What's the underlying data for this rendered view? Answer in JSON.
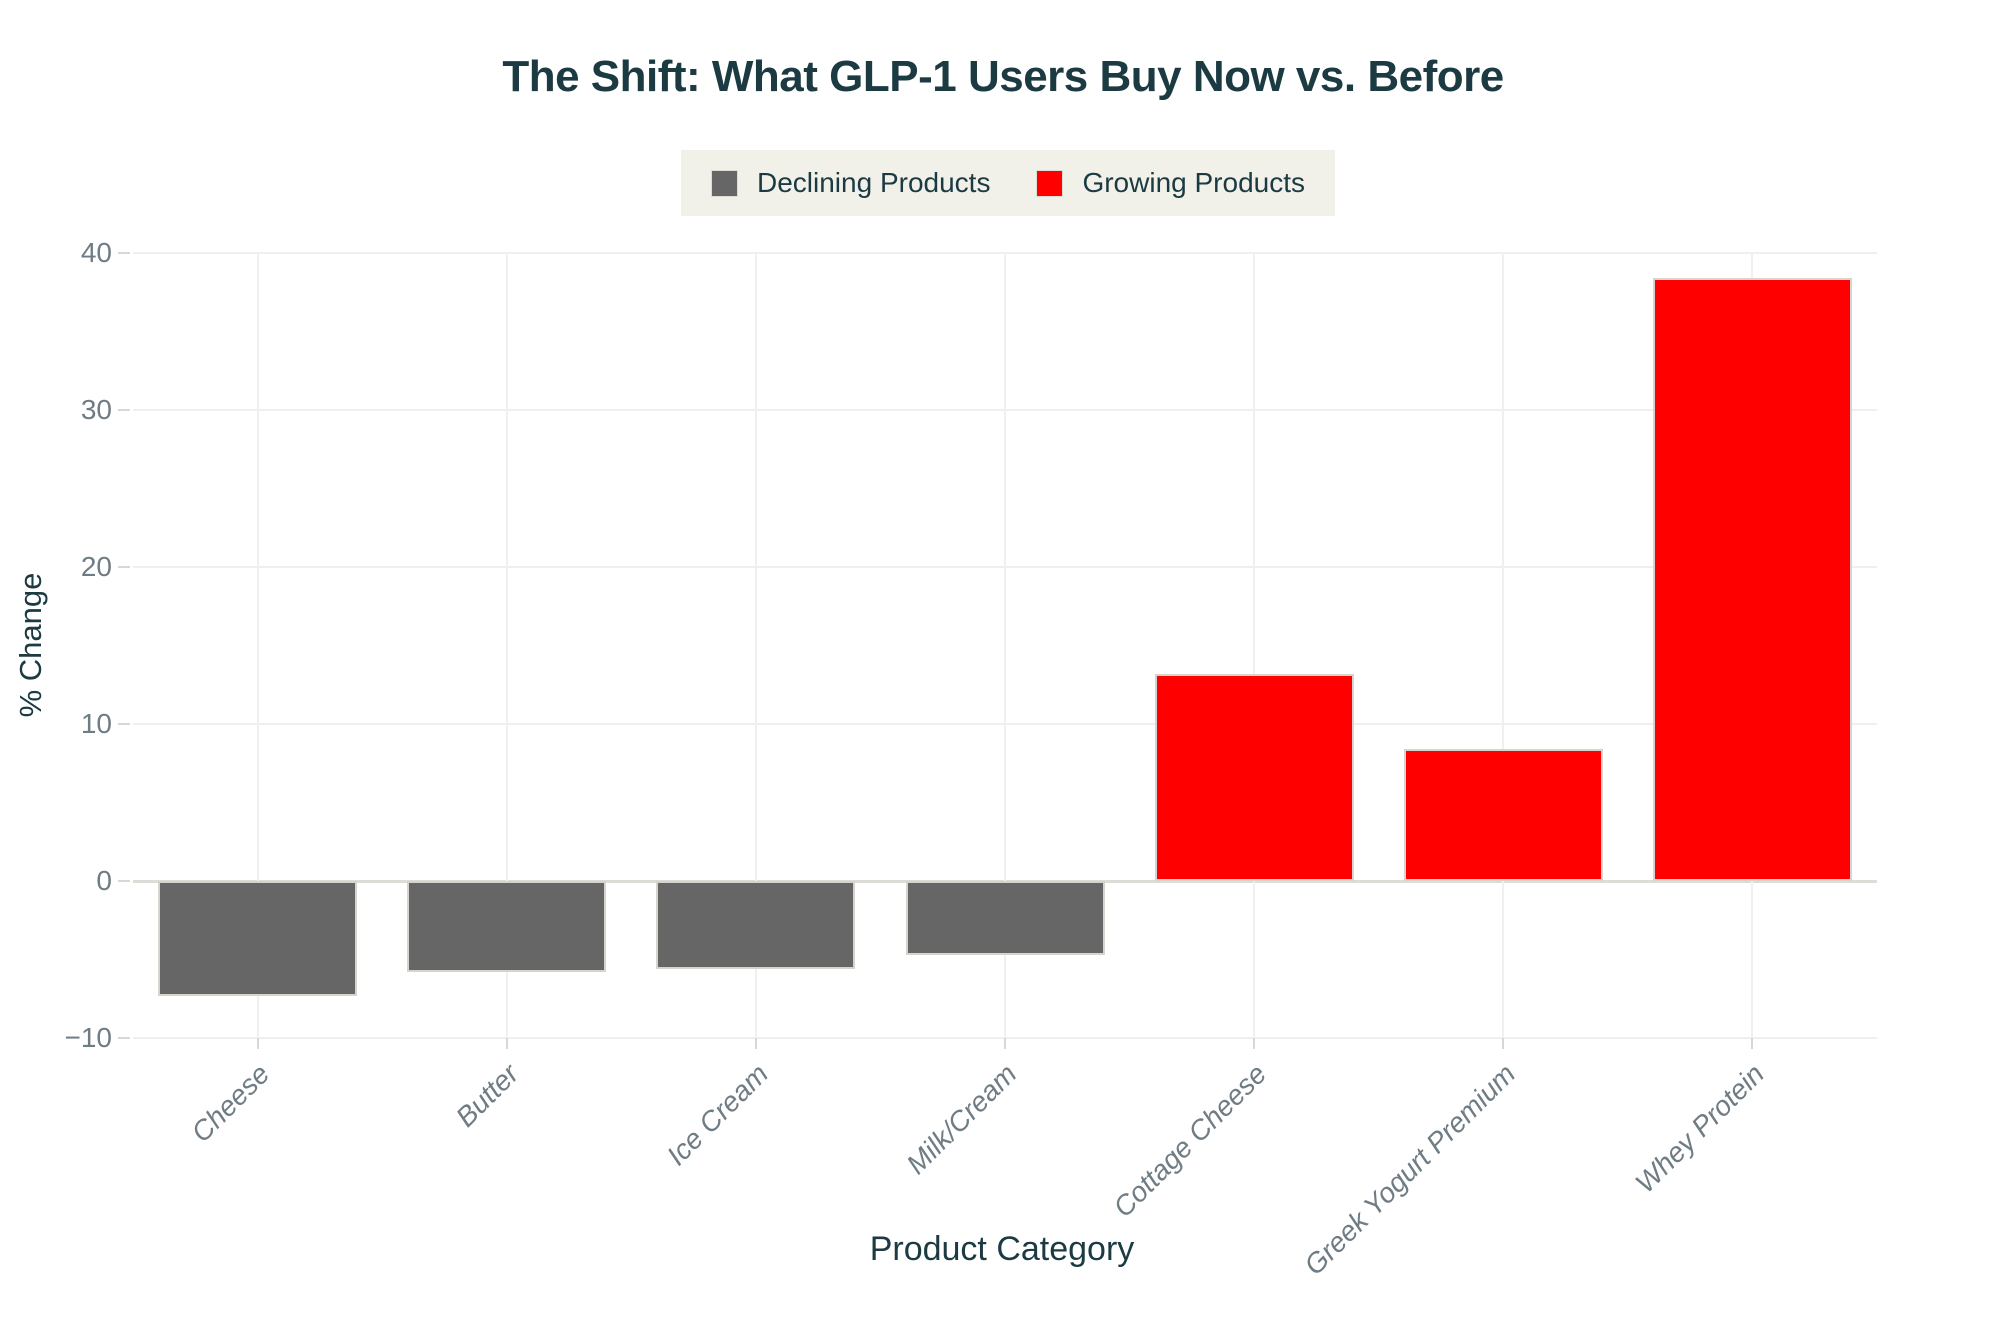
{
  "title": "The Shift: What GLP-1 Users Buy Now vs. Before",
  "legend": {
    "items": [
      {
        "label": "Declining Products",
        "group": "declining"
      },
      {
        "label": "Growing Products",
        "group": "growing"
      }
    ]
  },
  "colors": {
    "declining": "#666666",
    "growing": "#ff0000",
    "legend_bg": "#f1f0e9",
    "heading_text": "#1c3a42",
    "tick_text": "#6f7c84"
  },
  "chart_data": {
    "type": "bar",
    "title": "The Shift: What GLP-1 Users Buy Now vs. Before",
    "xlabel": "Product Category",
    "ylabel": "% Change",
    "categories": [
      "Cheese",
      "Butter",
      "Ice Cream",
      "Milk/Cream",
      "Cottage Cheese",
      "Greek Yogurt Premium",
      "Whey Protein"
    ],
    "values": [
      -7.3,
      -5.8,
      -5.6,
      -4.7,
      13.2,
      8.4,
      38.4
    ],
    "groups": [
      "declining",
      "declining",
      "declining",
      "declining",
      "growing",
      "growing",
      "growing"
    ],
    "series": [
      {
        "name": "Declining Products",
        "categories": [
          "Cheese",
          "Butter",
          "Ice Cream",
          "Milk/Cream"
        ],
        "values": [
          -7.3,
          -5.8,
          -5.6,
          -4.7
        ]
      },
      {
        "name": "Growing Products",
        "categories": [
          "Cottage Cheese",
          "Greek Yogurt Premium",
          "Whey Protein"
        ],
        "values": [
          13.2,
          8.4,
          38.4
        ]
      }
    ],
    "yticks": [
      40,
      30,
      20,
      10,
      0,
      -10
    ],
    "ylim": [
      -10,
      40
    ],
    "grid": true,
    "legend_position": "top-center",
    "bar_width_fraction": 0.8
  }
}
